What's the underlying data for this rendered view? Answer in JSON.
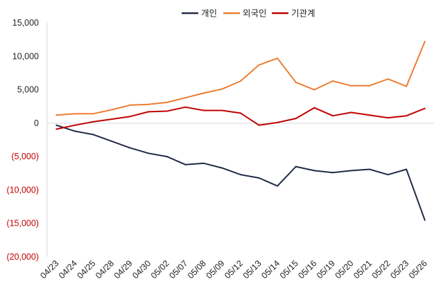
{
  "chart_data": {
    "type": "line",
    "title": "",
    "xlabel": "",
    "ylabel": "",
    "categories": [
      "04/23",
      "04/24",
      "04/25",
      "04/28",
      "04/29",
      "04/30",
      "05/02",
      "05/07",
      "05/08",
      "05/09",
      "05/12",
      "05/13",
      "05/14",
      "05/15",
      "05/16",
      "05/19",
      "05/20",
      "05/21",
      "05/22",
      "05/23",
      "05/26"
    ],
    "series": [
      {
        "name": "개인",
        "color": "#1f2a44",
        "values": [
          -300,
          -1200,
          -1700,
          -2700,
          -3700,
          -4500,
          -5000,
          -6200,
          -6000,
          -6700,
          -7700,
          -8200,
          -9400,
          -6500,
          -7100,
          -7400,
          -7100,
          -6900,
          -7700,
          -6900,
          -14500
        ]
      },
      {
        "name": "외국인",
        "color": "#ed7d31",
        "values": [
          1200,
          1400,
          1400,
          2000,
          2700,
          2800,
          3100,
          3800,
          4500,
          5100,
          6300,
          8700,
          9700,
          6100,
          5000,
          6300,
          5600,
          5600,
          6600,
          5500,
          12200
        ]
      },
      {
        "name": "기관계",
        "color": "#c00000",
        "values": [
          -900,
          -300,
          200,
          600,
          1000,
          1700,
          1800,
          2400,
          1900,
          1900,
          1500,
          -300,
          100,
          700,
          2300,
          1100,
          1600,
          1200,
          800,
          1100,
          2200
        ]
      }
    ],
    "ylim": [
      -20000,
      15000
    ],
    "yticks": [
      15000,
      10000,
      5000,
      0,
      -5000,
      -10000,
      -15000,
      -20000
    ],
    "ytick_labels": [
      "15,000",
      "10,000",
      "5,000",
      "0",
      "(5,000)",
      "(10,000)",
      "(15,000)",
      "(20,000)"
    ],
    "grid": false,
    "legend_position": "top-center"
  }
}
